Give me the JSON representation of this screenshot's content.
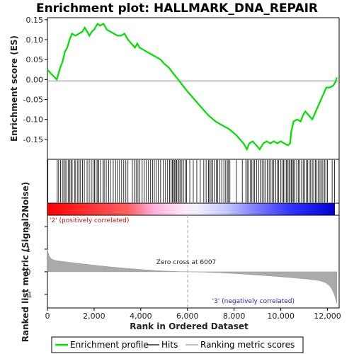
{
  "chart_data": {
    "type": "line",
    "title": "Enrichment plot: HALLMARK_DNA_REPAIR",
    "xlabel": "Rank in Ordered Dataset",
    "ylabel_top": "Enrichment score (ES)",
    "ylabel_bottom": "Ranked list metric (Signal2Noise)",
    "xlim": [
      0,
      12500
    ],
    "ylim_top": [
      -0.2,
      0.155
    ],
    "ylim_bottom": [
      -1.6,
      2.5
    ],
    "x_ticks": [
      0,
      2000,
      4000,
      6000,
      8000,
      10000,
      12000
    ],
    "x_tick_labels": [
      "0",
      "2,000",
      "4,000",
      "6,000",
      "8,000",
      "10,000",
      "12,000"
    ],
    "y_ticks_top": [
      0.15,
      0.1,
      0.05,
      0.0,
      -0.05,
      -0.1,
      -0.15
    ],
    "y_tick_labels_top": [
      "0.15",
      "0.10",
      "0.05",
      "0.00",
      "-0.05",
      "-0.10",
      "-0.15"
    ],
    "y_ticks_bottom": [
      2,
      1,
      0,
      -1
    ],
    "y_tick_labels_bottom": [
      "2",
      "1",
      "0",
      "-1"
    ],
    "es_profile": {
      "name": "Enrichment profile",
      "color": "#00e000",
      "x": [
        0,
        150,
        400,
        550,
        650,
        750,
        850,
        950,
        1050,
        1200,
        1350,
        1500,
        1600,
        1700,
        1800,
        1900,
        2000,
        2150,
        2250,
        2400,
        2550,
        2700,
        2850,
        3000,
        3150,
        3300,
        3450,
        3600,
        3750,
        3850,
        3950,
        4100,
        4250,
        4400,
        4550,
        4700,
        4850,
        5000,
        5200,
        5400,
        5600,
        5800,
        6000,
        6300,
        6600,
        6900,
        7200,
        7500,
        7800,
        8100,
        8400,
        8550,
        8650,
        8800,
        8950,
        9100,
        9250,
        9400,
        9550,
        9700,
        9850,
        10000,
        10150,
        10300,
        10400,
        10450,
        10550,
        10700,
        10850,
        10950,
        11050,
        11200,
        11350,
        11500,
        11650,
        11800,
        11950,
        12100,
        12250,
        12350,
        12400
      ],
      "y": [
        0.025,
        0.015,
        0.0,
        0.03,
        0.045,
        0.07,
        0.08,
        0.1,
        0.115,
        0.11,
        0.115,
        0.12,
        0.13,
        0.12,
        0.11,
        0.12,
        0.125,
        0.14,
        0.135,
        0.14,
        0.125,
        0.12,
        0.115,
        0.11,
        0.11,
        0.115,
        0.1,
        0.09,
        0.08,
        0.09,
        0.08,
        0.075,
        0.07,
        0.065,
        0.06,
        0.055,
        0.05,
        0.04,
        0.03,
        0.015,
        0.0,
        -0.015,
        -0.03,
        -0.05,
        -0.07,
        -0.09,
        -0.105,
        -0.115,
        -0.125,
        -0.14,
        -0.16,
        -0.175,
        -0.16,
        -0.155,
        -0.165,
        -0.175,
        -0.16,
        -0.155,
        -0.16,
        -0.155,
        -0.16,
        -0.155,
        -0.16,
        -0.165,
        -0.16,
        -0.13,
        -0.105,
        -0.1,
        -0.105,
        -0.09,
        -0.08,
        -0.09,
        -0.1,
        -0.08,
        -0.06,
        -0.04,
        -0.02,
        -0.02,
        -0.015,
        -0.005,
        0.005
      ]
    },
    "hits_label": "Hits",
    "hit_positions": [
      20,
      420,
      480,
      560,
      640,
      700,
      760,
      830,
      900,
      960,
      1010,
      1060,
      1160,
      1210,
      1300,
      1360,
      1420,
      1500,
      1580,
      1700,
      1790,
      1880,
      1950,
      2020,
      2090,
      2150,
      2200,
      2270,
      2380,
      2430,
      2520,
      2620,
      2700,
      2820,
      2920,
      3000,
      3090,
      3180,
      3270,
      3360,
      3450,
      3640,
      3720,
      3800,
      3880,
      3960,
      4060,
      4150,
      4240,
      4330,
      4420,
      4500,
      4580,
      4660,
      4750,
      4850,
      4960,
      5060,
      5150,
      5230,
      5300,
      5350,
      5390,
      5440,
      5490,
      5540,
      5590,
      5640,
      5690,
      5760,
      5830,
      5900,
      5960,
      6100,
      6250,
      6400,
      6550,
      6700,
      6800,
      6900,
      6950,
      7010,
      7080,
      7150,
      7240,
      7300,
      7390,
      7470,
      7560,
      7640,
      7710,
      7760,
      7820,
      8100,
      8350,
      8500,
      8560,
      8620,
      8700,
      8760,
      8820,
      8880,
      8960,
      9050,
      9120,
      9200,
      9280,
      9350,
      9420,
      9500,
      9580,
      9640,
      9700,
      9780,
      9850,
      9910,
      9990,
      10050,
      10120,
      10180,
      10240,
      10300,
      10350,
      10400,
      10450,
      10500,
      10550,
      10600,
      10680,
      10750,
      10820,
      10890,
      10960,
      11020,
      11090,
      11150,
      11220,
      11280,
      11350,
      11410,
      11480,
      11550,
      11610,
      11680,
      11740,
      11800,
      11870,
      11930,
      12000,
      12200,
      12300
    ],
    "ranking_label": "Ranking metric scores",
    "zero_cross_label": "Zero cross at 6007",
    "zero_cross": 6007,
    "pos_label": "'2' (positively correlated)",
    "neg_label": "'3' (negatively correlated)",
    "colors": {
      "profile": "#00e000",
      "hits": "#000000",
      "metric_fill": "#aaaaaa",
      "pos_text": "#d01010",
      "neg_text": "#2020c0",
      "zero_line": "#aaaaaa",
      "baseline": "#888888"
    }
  }
}
